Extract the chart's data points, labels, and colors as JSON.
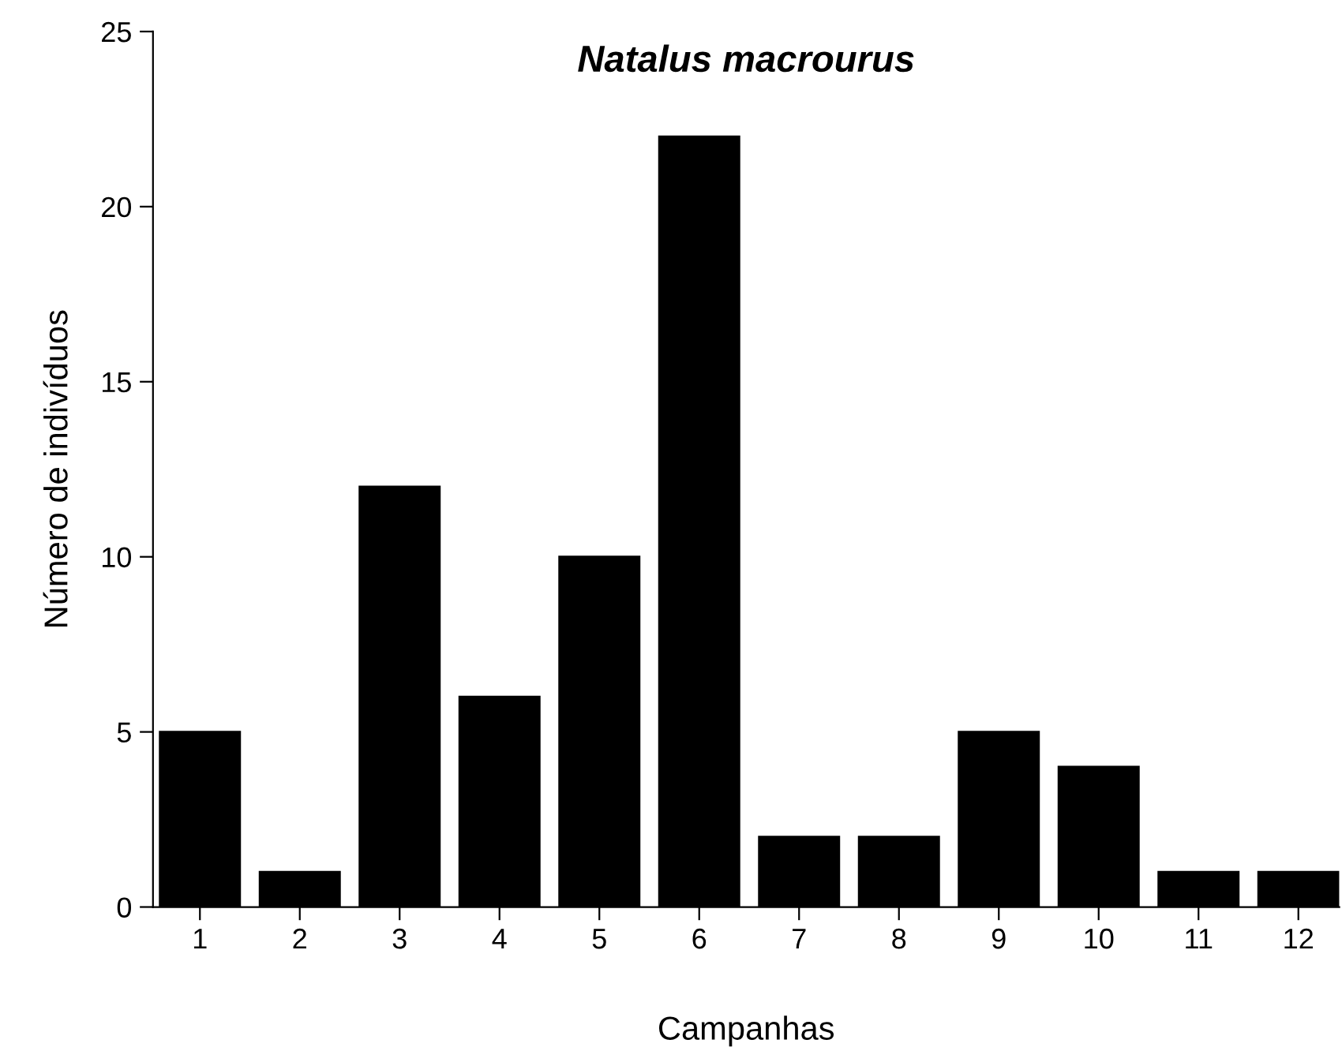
{
  "chart_data": {
    "type": "bar",
    "title": "Natalus macrourus",
    "xlabel": "Campanhas",
    "ylabel": "Número de indivíduos",
    "categories": [
      "1",
      "2",
      "3",
      "4",
      "5",
      "6",
      "7",
      "8",
      "9",
      "10",
      "11",
      "12"
    ],
    "values": [
      5,
      1,
      12,
      6,
      10,
      22,
      2,
      2,
      5,
      4,
      1,
      1
    ],
    "color": "#000000",
    "ylim": [
      0,
      25
    ],
    "yticks": [
      0,
      5,
      10,
      15,
      20,
      25
    ],
    "grid": false,
    "legend": false
  }
}
